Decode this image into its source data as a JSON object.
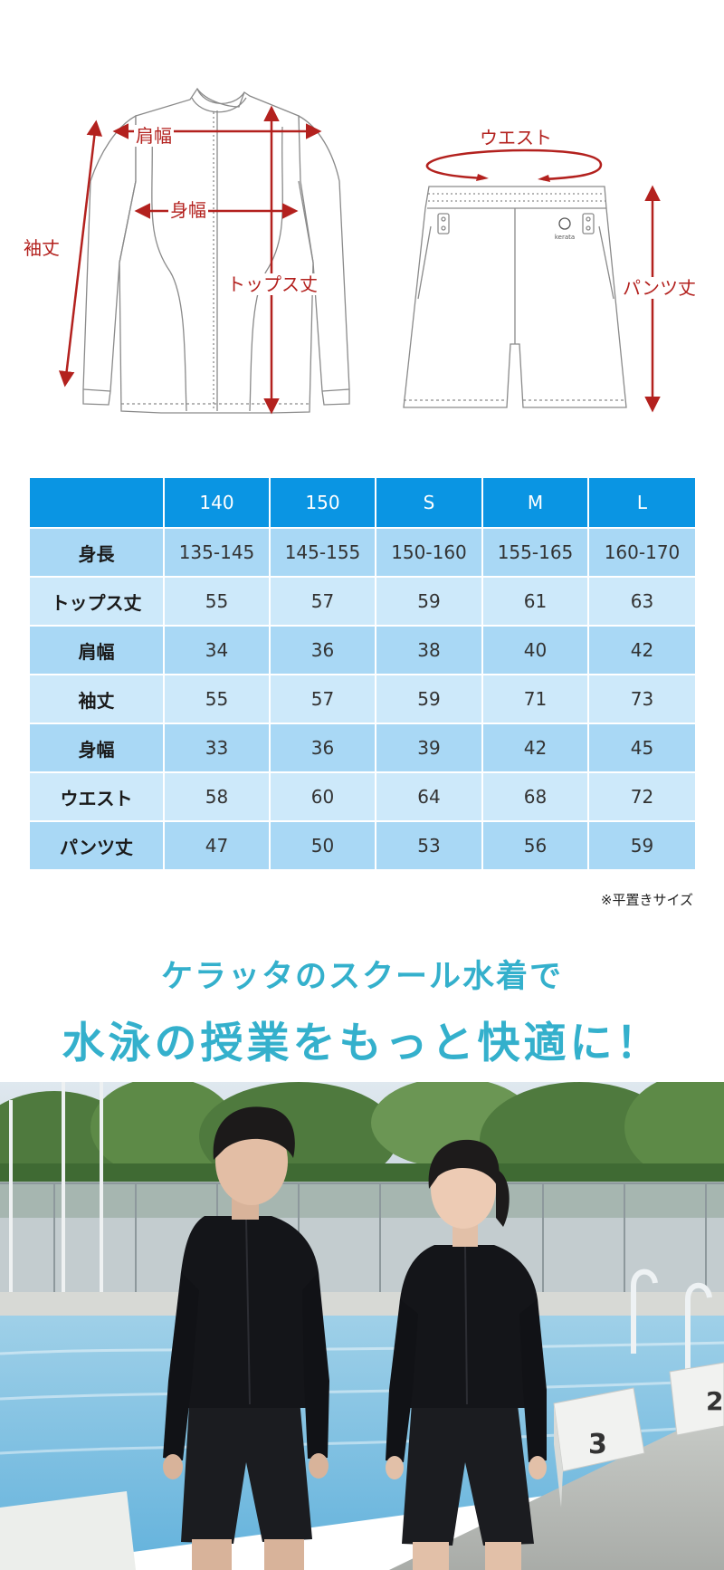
{
  "diagram": {
    "labels": {
      "shoulder_width": "肩幅",
      "body_width": "身幅",
      "sleeve_length": "袖丈",
      "tops_length": "トップス丈",
      "waist": "ウエスト",
      "pants_length": "パンツ丈"
    },
    "brand_mark": "kerata"
  },
  "size_table": {
    "headers": [
      "",
      "140",
      "150",
      "S",
      "M",
      "L"
    ],
    "rows": [
      {
        "label": "身長",
        "values": [
          "135-145",
          "145-155",
          "150-160",
          "155-165",
          "160-170"
        ]
      },
      {
        "label": "トップス丈",
        "values": [
          "55",
          "57",
          "59",
          "61",
          "63"
        ]
      },
      {
        "label": "肩幅",
        "values": [
          "34",
          "36",
          "38",
          "40",
          "42"
        ]
      },
      {
        "label": "袖丈",
        "values": [
          "55",
          "57",
          "59",
          "71",
          "73"
        ]
      },
      {
        "label": "身幅",
        "values": [
          "33",
          "36",
          "39",
          "42",
          "45"
        ]
      },
      {
        "label": "ウエスト",
        "values": [
          "58",
          "60",
          "64",
          "68",
          "72"
        ]
      },
      {
        "label": "パンツ丈",
        "values": [
          "47",
          "50",
          "53",
          "56",
          "59"
        ]
      }
    ],
    "note": "※平置きサイズ"
  },
  "tagline": {
    "line1": "ケラッタのスクール水着で",
    "line2": "水泳の授業をもっと快適に！"
  },
  "photo": {
    "block_number_left": "3",
    "block_number_right": "2"
  },
  "colors": {
    "measure_red": "#b3211e",
    "header_blue": "#0a95e3",
    "row_dark": "#a9d8f5",
    "row_light": "#cde9fa",
    "tagline_teal": "#34b0cc"
  }
}
